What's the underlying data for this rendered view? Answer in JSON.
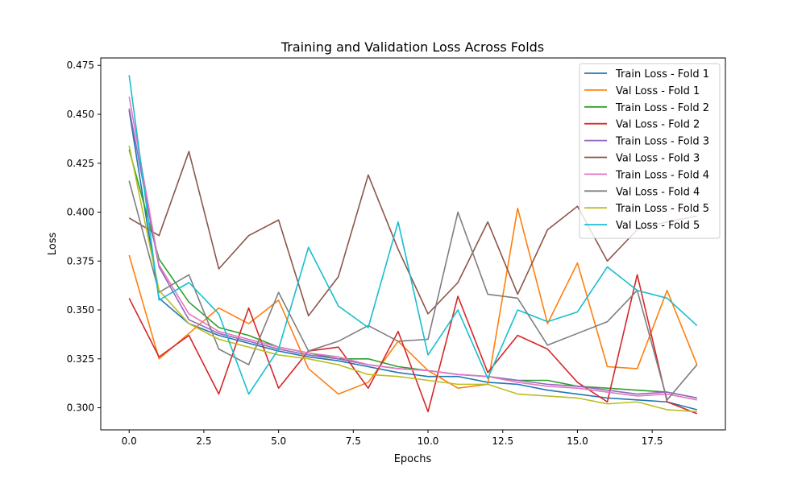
{
  "chart_data": {
    "type": "line",
    "title": "Training and Validation Loss Across Folds",
    "xlabel": "Epochs",
    "ylabel": "Loss",
    "xlim": [
      -0.95,
      19.95
    ],
    "ylim": [
      0.2887,
      0.4788
    ],
    "x_ticks": [
      0.0,
      2.5,
      5.0,
      7.5,
      10.0,
      12.5,
      15.0,
      17.5
    ],
    "x_tick_labels": [
      "0.0",
      "2.5",
      "5.0",
      "7.5",
      "10.0",
      "12.5",
      "15.0",
      "17.5"
    ],
    "y_ticks": [
      0.3,
      0.325,
      0.35,
      0.375,
      0.4,
      0.425,
      0.45,
      0.475
    ],
    "y_tick_labels": [
      "0.300",
      "0.325",
      "0.350",
      "0.375",
      "0.400",
      "0.425",
      "0.450",
      "0.475"
    ],
    "grid": false,
    "legend_position": "top-right",
    "x": [
      0,
      1,
      2,
      3,
      4,
      5,
      6,
      7,
      8,
      9,
      10,
      11,
      12,
      13,
      14,
      15,
      16,
      17,
      18,
      19
    ],
    "series": [
      {
        "name": "Train Loss - Fold 1",
        "color": "#1f77b4",
        "values": [
          0.452,
          0.356,
          0.343,
          0.337,
          0.333,
          0.329,
          0.326,
          0.324,
          0.321,
          0.318,
          0.316,
          0.316,
          0.313,
          0.312,
          0.309,
          0.307,
          0.305,
          0.304,
          0.303,
          0.299
        ]
      },
      {
        "name": "Val Loss - Fold 1",
        "color": "#ff7f0e",
        "values": [
          0.378,
          0.325,
          0.338,
          0.351,
          0.343,
          0.355,
          0.32,
          0.307,
          0.313,
          0.334,
          0.319,
          0.31,
          0.312,
          0.402,
          0.343,
          0.374,
          0.321,
          0.32,
          0.36,
          0.322
        ]
      },
      {
        "name": "Train Loss - Fold 2",
        "color": "#2ca02c",
        "values": [
          0.432,
          0.376,
          0.354,
          0.341,
          0.337,
          0.331,
          0.328,
          0.325,
          0.325,
          0.321,
          0.319,
          0.317,
          0.316,
          0.314,
          0.314,
          0.311,
          0.31,
          0.309,
          0.308,
          0.305
        ]
      },
      {
        "name": "Val Loss - Fold 2",
        "color": "#d62728",
        "values": [
          0.356,
          0.326,
          0.337,
          0.307,
          0.351,
          0.31,
          0.329,
          0.331,
          0.31,
          0.339,
          0.298,
          0.357,
          0.318,
          0.337,
          0.33,
          0.313,
          0.303,
          0.368,
          0.303,
          0.297
        ]
      },
      {
        "name": "Train Loss - Fold 3",
        "color": "#9467bd",
        "values": [
          0.453,
          0.372,
          0.345,
          0.338,
          0.334,
          0.33,
          0.327,
          0.325,
          0.322,
          0.32,
          0.319,
          0.317,
          0.316,
          0.314,
          0.312,
          0.311,
          0.309,
          0.307,
          0.308,
          0.305
        ]
      },
      {
        "name": "Val Loss - Fold 3",
        "color": "#8c564b",
        "values": [
          0.397,
          0.388,
          0.431,
          0.371,
          0.388,
          0.396,
          0.347,
          0.367,
          0.419,
          0.381,
          0.348,
          0.364,
          0.395,
          0.358,
          0.391,
          0.403,
          0.375,
          0.391,
          0.395,
          0.398
        ]
      },
      {
        "name": "Train Loss - Fold 4",
        "color": "#e377c2",
        "values": [
          0.459,
          0.373,
          0.348,
          0.339,
          0.335,
          0.331,
          0.328,
          0.326,
          0.322,
          0.32,
          0.319,
          0.317,
          0.316,
          0.313,
          0.311,
          0.31,
          0.308,
          0.306,
          0.307,
          0.304
        ]
      },
      {
        "name": "Val Loss - Fold 4",
        "color": "#7f7f7f",
        "values": [
          0.416,
          0.359,
          0.368,
          0.33,
          0.322,
          0.359,
          0.329,
          0.334,
          0.342,
          0.334,
          0.335,
          0.4,
          0.358,
          0.356,
          0.332,
          0.338,
          0.344,
          0.36,
          0.304,
          0.322
        ]
      },
      {
        "name": "Train Loss - Fold 5",
        "color": "#bcbd22",
        "values": [
          0.434,
          0.36,
          0.343,
          0.335,
          0.331,
          0.327,
          0.325,
          0.322,
          0.317,
          0.316,
          0.314,
          0.312,
          0.312,
          0.307,
          0.306,
          0.305,
          0.302,
          0.303,
          0.299,
          0.298
        ]
      },
      {
        "name": "Val Loss - Fold 5",
        "color": "#17becf",
        "values": [
          0.47,
          0.355,
          0.364,
          0.348,
          0.307,
          0.33,
          0.382,
          0.352,
          0.341,
          0.395,
          0.327,
          0.35,
          0.315,
          0.35,
          0.344,
          0.349,
          0.372,
          0.36,
          0.356,
          0.342
        ]
      }
    ]
  }
}
